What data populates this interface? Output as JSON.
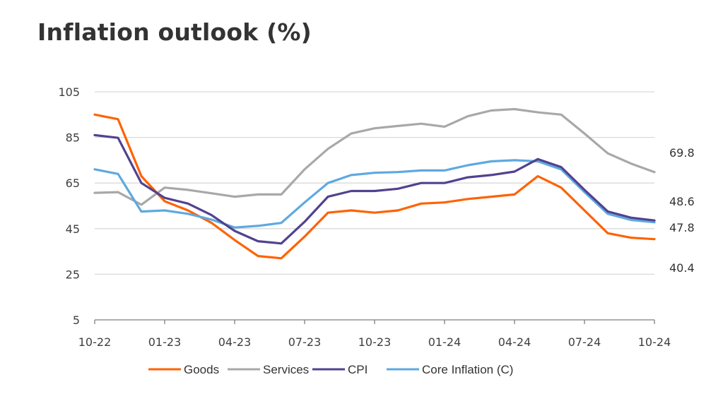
{
  "title": "Inflation outlook (%)",
  "chart_data": {
    "type": "line",
    "title": "Inflation outlook (%)",
    "xlabel": "",
    "ylabel": "",
    "ylim": [
      5,
      105
    ],
    "yticks": [
      105,
      85,
      65,
      45,
      25,
      5
    ],
    "grid": true,
    "legend_position": "bottom",
    "x": [
      "10-22",
      "11-22",
      "12-22",
      "01-23",
      "02-23",
      "03-23",
      "04-23",
      "05-23",
      "06-23",
      "07-23",
      "08-23",
      "09-23",
      "10-23",
      "11-23",
      "12-23",
      "01-24",
      "02-24",
      "03-24",
      "04-24",
      "05-24",
      "06-24",
      "07-24",
      "08-24",
      "09-24",
      "10-24"
    ],
    "xtick_labels": [
      "10-22",
      "01-23",
      "04-23",
      "07-23",
      "10-23",
      "01-24",
      "04-24",
      "07-24",
      "10-24"
    ],
    "series": [
      {
        "name": "Goods",
        "color": "#ff6200",
        "values": [
          95,
          93,
          68,
          57,
          53,
          47.6,
          40,
          33,
          32,
          41.5,
          52,
          53,
          52,
          53,
          56,
          56.5,
          58,
          59,
          60,
          68,
          63,
          53,
          43,
          41,
          40.4
        ]
      },
      {
        "name": "Services",
        "color": "#a8a8a8",
        "values": [
          60.7,
          61,
          55.5,
          63,
          62,
          60.5,
          59,
          60,
          60,
          71,
          80,
          86.7,
          89,
          90,
          91,
          89.7,
          94.3,
          96.8,
          97.4,
          96,
          95,
          86.7,
          78,
          73.5,
          69.8
        ]
      },
      {
        "name": "CPI",
        "color": "#52418f",
        "values": [
          86,
          84.8,
          65,
          58.5,
          56,
          51,
          44,
          39.5,
          38.5,
          48,
          59,
          61.5,
          61.5,
          62.5,
          65,
          65,
          67.5,
          68.5,
          70,
          75.5,
          72,
          62,
          52.5,
          49.8,
          48.6
        ]
      },
      {
        "name": "Core Inflation (C)",
        "color": "#5ea9e0",
        "values": [
          71,
          69,
          52.5,
          53,
          51.5,
          49,
          45.5,
          46.2,
          47.5,
          56.5,
          65,
          68.5,
          69.5,
          69.8,
          70.5,
          70.5,
          72.8,
          74.5,
          75,
          74.5,
          71,
          61,
          51.5,
          48.8,
          47.8
        ]
      }
    ],
    "end_labels": [
      "69.8",
      "48.6",
      "47.8",
      "40.4"
    ]
  }
}
